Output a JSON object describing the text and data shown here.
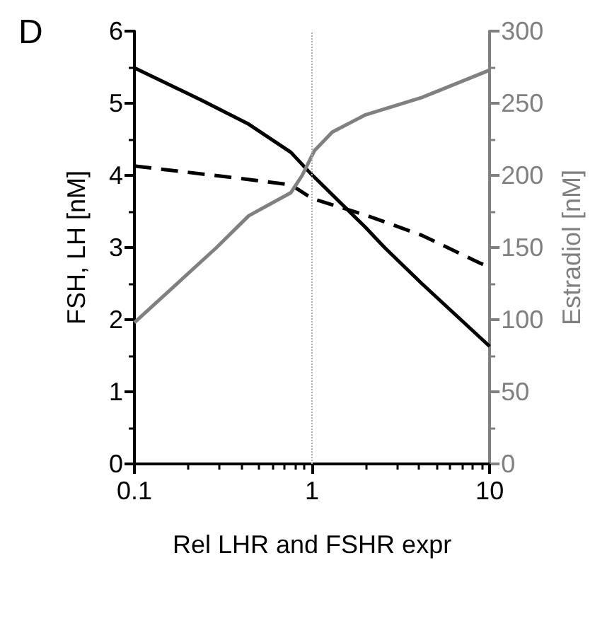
{
  "chart_data": {
    "type": "line",
    "title": "D",
    "xlabel": "Rel LHR and FSHR expr",
    "ylabel": "FSH, LH [nM]",
    "y2label": "Estradiol [nM]",
    "log": "x",
    "grid": false,
    "marker": "none",
    "xlim": [
      0.1,
      10
    ],
    "xticks": [
      0.1,
      1,
      10
    ],
    "ylim": [
      0,
      6
    ],
    "yticks": [
      0,
      1,
      2,
      3,
      4,
      5,
      6
    ],
    "y2lim": [
      0,
      300
    ],
    "y2ticks": [
      0,
      50,
      100,
      150,
      200,
      250,
      300
    ],
    "ref_lines": [
      {
        "axis": "x",
        "value": 1,
        "label": null,
        "color": "#b0b0b0",
        "line_style": "dotted"
      }
    ],
    "series": [
      {
        "color": "#000000",
        "line_style": "solid",
        "x": [
          0.1,
          0.24,
          0.44,
          0.76,
          0.97,
          2.0,
          2.56,
          4.15,
          10
        ],
        "values": [
          5.49,
          5.04,
          4.71,
          4.32,
          4.04,
          3.28,
          3.0,
          2.5,
          1.63
        ]
      },
      {
        "color": "#000000",
        "line_style": "dashed",
        "x": [
          0.1,
          0.33,
          0.76,
          1.0,
          2.0,
          4.15,
          8.9,
          10
        ],
        "values": [
          4.13,
          3.98,
          3.87,
          3.68,
          3.45,
          3.17,
          2.78,
          2.73
        ]
      },
      {
        "color": "#808080",
        "line_style": "solid",
        "axis": "y2",
        "x": [
          0.1,
          0.29,
          0.44,
          0.76,
          0.88,
          1.03,
          1.3,
          2.0,
          4.15,
          10
        ],
        "values": [
          98,
          150,
          172,
          188,
          200,
          217,
          230,
          242,
          254,
          273
        ]
      }
    ]
  }
}
